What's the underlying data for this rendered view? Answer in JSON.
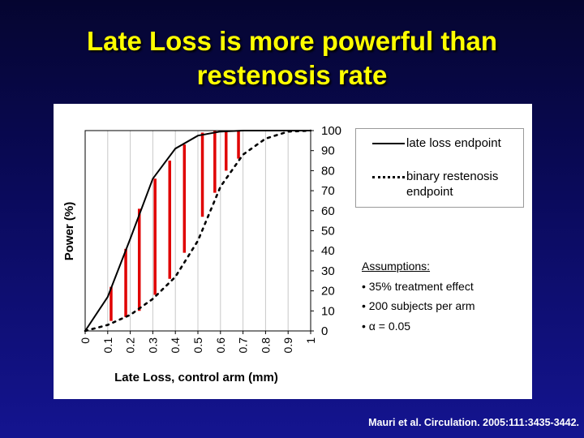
{
  "title": {
    "line1": "Late Loss is more powerful than",
    "line2": "restenosis rate"
  },
  "colors": {
    "title": "#ffff00",
    "late_loss_line": "#000000",
    "binary_line": "#000000",
    "difference_bars": "#e00000"
  },
  "chart_data": {
    "type": "line",
    "xlabel": "Late Loss, control arm (mm)",
    "ylabel": "Power (%)",
    "xlim": [
      0,
      1
    ],
    "ylim": [
      0,
      100
    ],
    "x_ticks": [
      "0",
      "0.1",
      "0.2",
      "0.3",
      "0.4",
      "0.5",
      "0.6",
      "0.7",
      "0.8",
      "0.9",
      "1"
    ],
    "y_ticks": [
      "0",
      "10",
      "20",
      "30",
      "40",
      "50",
      "60",
      "70",
      "80",
      "90",
      "100"
    ],
    "y_axis_side": "right",
    "grid": "vertical",
    "legend_position": "top-right",
    "series": [
      {
        "name": "late loss endpoint",
        "style": "solid",
        "x": [
          0,
          0.1,
          0.2,
          0.3,
          0.4,
          0.5,
          0.6,
          0.7,
          0.8,
          0.9,
          1.0
        ],
        "y": [
          0,
          17,
          46,
          76,
          91,
          97.5,
          99.5,
          100,
          100,
          100,
          100
        ]
      },
      {
        "name": "binary restenosis endpoint",
        "style": "dotted",
        "x": [
          0,
          0.1,
          0.2,
          0.3,
          0.4,
          0.5,
          0.6,
          0.7,
          0.8,
          0.9,
          1.0
        ],
        "y": [
          0,
          3,
          8,
          16,
          27,
          45,
          72,
          88,
          96,
          99.5,
          100
        ]
      }
    ],
    "difference_bars": [
      {
        "x": 0.115,
        "top": 22,
        "bottom": 5
      },
      {
        "x": 0.18,
        "top": 41,
        "bottom": 7
      },
      {
        "x": 0.24,
        "top": 61,
        "bottom": 10
      },
      {
        "x": 0.31,
        "top": 76,
        "bottom": 18
      },
      {
        "x": 0.375,
        "top": 85,
        "bottom": 26
      },
      {
        "x": 0.44,
        "top": 93,
        "bottom": 39
      },
      {
        "x": 0.52,
        "top": 99,
        "bottom": 57
      },
      {
        "x": 0.575,
        "top": 100,
        "bottom": 69
      },
      {
        "x": 0.625,
        "top": 100,
        "bottom": 80
      },
      {
        "x": 0.68,
        "top": 100,
        "bottom": 86
      }
    ]
  },
  "legend": {
    "solid_label": "late loss endpoint",
    "dotted_label": "binary restenosis endpoint"
  },
  "assumptions": {
    "heading": "Assumptions:",
    "items": [
      "• 35% treatment effect",
      "• 200 subjects per arm",
      "• α = 0.05"
    ]
  },
  "citation": "Mauri et al. Circulation. 2005:111:3435-3442."
}
